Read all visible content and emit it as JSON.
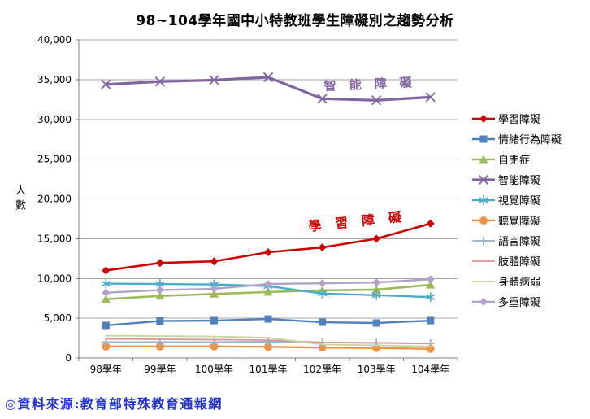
{
  "source_note": "◎資料來源:教育部特殊教育通報網",
  "chart_data": {
    "type": "line",
    "title": "98~104學年國中小特教班學生障礙別之趨勢分析",
    "ylabel": "人數",
    "xlabel": "",
    "ylim": [
      0,
      40000
    ],
    "ytick_step": 5000,
    "grid": true,
    "legend_position": "right",
    "categories": [
      "98學年",
      "99學年",
      "100學年",
      "101學年",
      "102學年",
      "103學年",
      "104學年"
    ],
    "series": [
      {
        "key": "learning-disability",
        "name": "學習障礙",
        "color": "#CC0000",
        "marker": "diamond",
        "values": [
          11000,
          11950,
          12150,
          13300,
          13900,
          15000,
          16900
        ]
      },
      {
        "key": "emotional-behavioral-disability",
        "name": "情緒行為障礙",
        "color": "#4F81BD",
        "marker": "square",
        "values": [
          4100,
          4650,
          4700,
          4900,
          4500,
          4400,
          4700
        ]
      },
      {
        "key": "autism",
        "name": "自閉症",
        "color": "#9BBB59",
        "marker": "triangle",
        "values": [
          7400,
          7800,
          8050,
          8300,
          8500,
          8600,
          9200
        ]
      },
      {
        "key": "intellectual-disability",
        "name": "智能障礙",
        "color": "#8064A2",
        "marker": "x",
        "values": [
          34400,
          34750,
          34950,
          35300,
          32600,
          32400,
          32800
        ]
      },
      {
        "key": "visual-impairment",
        "name": "視覺障礙",
        "color": "#4BACC6",
        "marker": "asterisk",
        "values": [
          9350,
          9300,
          9250,
          9050,
          8100,
          7900,
          7650
        ]
      },
      {
        "key": "hearing-impairment",
        "name": "聽覺障礙",
        "color": "#ED9546",
        "marker": "circle",
        "values": [
          1450,
          1450,
          1450,
          1400,
          1300,
          1250,
          1150
        ]
      },
      {
        "key": "speech-language-disability",
        "name": "語言障礙",
        "color": "#95B3D7",
        "marker": "plus",
        "values": [
          2000,
          2000,
          2000,
          2050,
          1950,
          1900,
          1850
        ]
      },
      {
        "key": "physical-disability",
        "name": "肢體障礙",
        "color": "#D99694",
        "marker": "none",
        "values": [
          2400,
          2350,
          2300,
          2250,
          1950,
          1900,
          1800
        ]
      },
      {
        "key": "health-impairment",
        "name": "身體病弱",
        "color": "#C3D69B",
        "marker": "none",
        "values": [
          2800,
          2750,
          2700,
          2550,
          1700,
          1600,
          1450
        ]
      },
      {
        "key": "multiple-disabilities",
        "name": "多重障礙",
        "color": "#B3A2C7",
        "marker": "diamond",
        "values": [
          8200,
          8550,
          8700,
          9300,
          9400,
          9500,
          9900
        ]
      }
    ],
    "annotations": [
      {
        "key": "intellectual-disability-callout",
        "text": "智能障礙",
        "color": "#8064A2",
        "x": 399,
        "y": 111,
        "rotate": -2.5,
        "font_size": 15,
        "letter_spacing": 16
      },
      {
        "key": "learning-disability-callout",
        "text": "學習障礙",
        "color": "#CC0000",
        "x": 380,
        "y": 284,
        "rotate": -6,
        "font_size": 16,
        "letter_spacing": 17
      }
    ]
  }
}
